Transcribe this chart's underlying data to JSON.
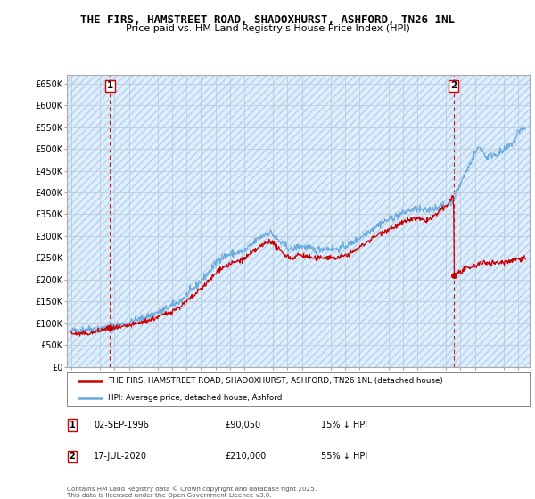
{
  "title": "THE FIRS, HAMSTREET ROAD, SHADOXHURST, ASHFORD, TN26 1NL",
  "subtitle": "Price paid vs. HM Land Registry's House Price Index (HPI)",
  "ylabel_ticks": [
    "£0",
    "£50K",
    "£100K",
    "£150K",
    "£200K",
    "£250K",
    "£300K",
    "£350K",
    "£400K",
    "£450K",
    "£500K",
    "£550K",
    "£600K",
    "£650K"
  ],
  "ytick_values": [
    0,
    50000,
    100000,
    150000,
    200000,
    250000,
    300000,
    350000,
    400000,
    450000,
    500000,
    550000,
    600000,
    650000
  ],
  "ylim": [
    0,
    670000
  ],
  "xlim_start": 1993.7,
  "xlim_end": 2025.8,
  "xticks": [
    1994,
    1995,
    1996,
    1997,
    1998,
    1999,
    2000,
    2001,
    2002,
    2003,
    2004,
    2005,
    2006,
    2007,
    2008,
    2009,
    2010,
    2011,
    2012,
    2013,
    2014,
    2015,
    2016,
    2017,
    2018,
    2019,
    2020,
    2021,
    2022,
    2023,
    2024,
    2025
  ],
  "hpi_color": "#6aabdf",
  "price_color": "#cc0000",
  "vline_color": "#cc0000",
  "background_color": "#ffffff",
  "plot_bg_color": "#ddeeff",
  "grid_color": "#bbccdd",
  "hatch_color": "#c8ddf0",
  "sale1": {
    "date_x": 1996.67,
    "price": 90050,
    "label": "1"
  },
  "sale2": {
    "date_x": 2020.54,
    "price": 210000,
    "label": "2"
  },
  "legend_line1": "THE FIRS, HAMSTREET ROAD, SHADOXHURST, ASHFORD, TN26 1NL (detached house)",
  "legend_line2": "HPI: Average price, detached house, Ashford",
  "annotation1_date": "02-SEP-1996",
  "annotation1_price": "£90,050",
  "annotation1_hpi": "15% ↓ HPI",
  "annotation2_date": "17-JUL-2020",
  "annotation2_price": "£210,000",
  "annotation2_hpi": "55% ↓ HPI",
  "footer": "Contains HM Land Registry data © Crown copyright and database right 2025.\nThis data is licensed under the Open Government Licence v3.0."
}
